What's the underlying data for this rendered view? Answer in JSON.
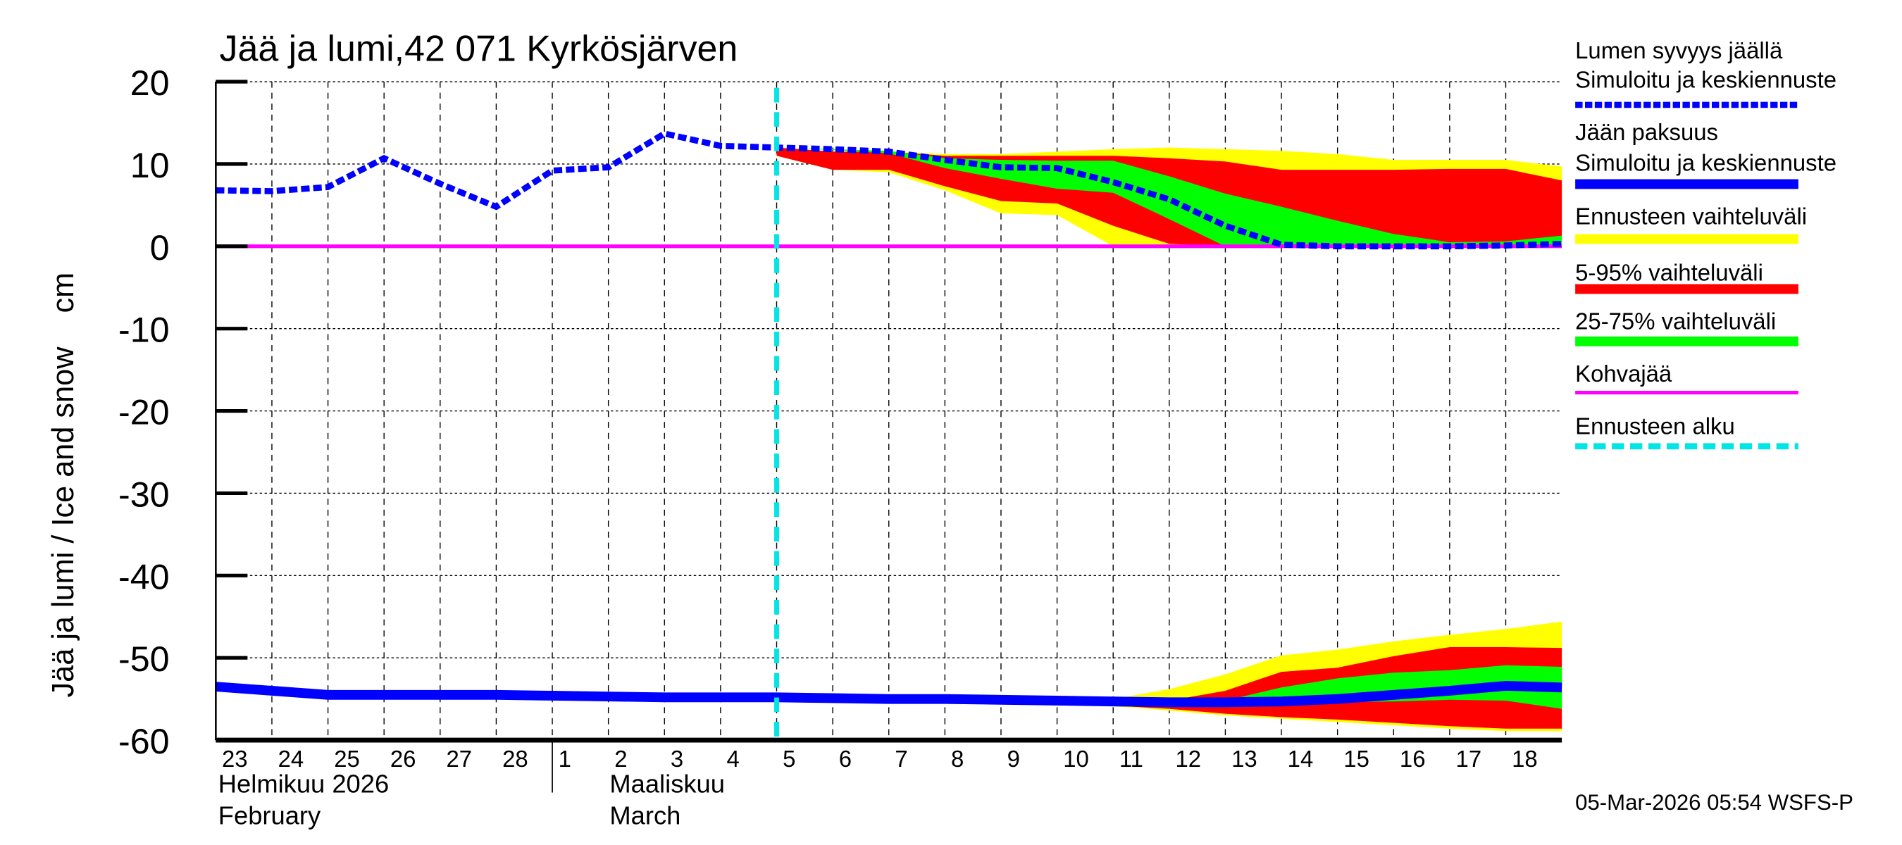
{
  "chart_data": {
    "type": "area",
    "title": "Jää ja lumi,42 071 Kyrkösjärven",
    "ylabel": "Jää ja lumi / Ice and snow    cm",
    "ylim": [
      -60,
      20
    ],
    "yticks": [
      20,
      10,
      0,
      -10,
      -20,
      -30,
      -40,
      -50,
      -60
    ],
    "xlim": [
      "2026-02-23",
      "2026-03-19"
    ],
    "xtick_labels": [
      "23",
      "24",
      "25",
      "26",
      "27",
      "28",
      "1",
      "2",
      "3",
      "4",
      "5",
      "6",
      "7",
      "8",
      "9",
      "10",
      "11",
      "12",
      "13",
      "14",
      "15",
      "16",
      "17",
      "18"
    ],
    "month_labels": [
      {
        "fi": "Helmikuu  2026",
        "en": "February"
      },
      {
        "fi": "Maaliskuu",
        "en": "March"
      }
    ],
    "grid": true,
    "legend_position": "right",
    "footer": "05-Mar-2026 05:54 WSFS-P",
    "forecast_start": "2026-03-05",
    "legend": [
      {
        "label": "Lumen syvyys jäällä",
        "label2": "Simuloitu ja keskiennuste",
        "color": "#0000ff",
        "style": "dashed"
      },
      {
        "label": "Jään paksuus",
        "label2": "Simuloitu ja keskiennuste",
        "color": "#0000ff",
        "style": "solid"
      },
      {
        "label": "Ennusteen vaihteluväli",
        "color": "#ffff00",
        "style": "band"
      },
      {
        "label": "5-95% vaihteluväli",
        "color": "#ff0000",
        "style": "band"
      },
      {
        "label": "25-75% vaihteluväli",
        "color": "#00ff00",
        "style": "band"
      },
      {
        "label": "Kohvajää",
        "color": "#ff00ff",
        "style": "solid-thin"
      },
      {
        "label": "Ennusteen alku",
        "color": "#00e5e5",
        "style": "dashed"
      }
    ],
    "snow_depth": {
      "x": [
        "2026-02-23",
        "2026-02-24",
        "2026-02-25",
        "2026-02-26",
        "2026-02-27",
        "2026-02-28",
        "2026-03-01",
        "2026-03-02",
        "2026-03-03",
        "2026-03-04",
        "2026-03-05",
        "2026-03-06",
        "2026-03-07",
        "2026-03-08",
        "2026-03-09",
        "2026-03-10",
        "2026-03-11",
        "2026-03-12",
        "2026-03-13",
        "2026-03-14",
        "2026-03-15",
        "2026-03-16",
        "2026-03-17",
        "2026-03-18",
        "2026-03-19"
      ],
      "values": [
        6.8,
        6.7,
        7.2,
        10.7,
        7.6,
        4.8,
        9.2,
        9.6,
        13.7,
        12.2,
        12.0,
        11.8,
        11.5,
        10.5,
        9.6,
        9.5,
        7.8,
        5.7,
        2.5,
        0.2,
        0,
        0,
        0,
        0.1,
        0.3
      ]
    },
    "snow_bands": {
      "x": [
        "2026-03-05",
        "2026-03-06",
        "2026-03-07",
        "2026-03-08",
        "2026-03-09",
        "2026-03-10",
        "2026-03-11",
        "2026-03-12",
        "2026-03-13",
        "2026-03-14",
        "2026-03-15",
        "2026-03-16",
        "2026-03-17",
        "2026-03-18",
        "2026-03-19"
      ],
      "range_upper": [
        12,
        11.5,
        11.5,
        11.2,
        11.2,
        11.5,
        11.8,
        12,
        11.8,
        11.6,
        11.2,
        10.5,
        10.5,
        10.5,
        9.7
      ],
      "range_lower": [
        11,
        9.3,
        9,
        6.8,
        4,
        3.8,
        0,
        0,
        0,
        0,
        0,
        0,
        0,
        0,
        0
      ],
      "p95": [
        12,
        11.5,
        11.5,
        11,
        11,
        11,
        11,
        10.7,
        10.3,
        9.3,
        9.3,
        9.3,
        9.4,
        9.4,
        8
      ],
      "p5": [
        11,
        9.3,
        9.3,
        7.3,
        5.5,
        5.2,
        2.5,
        0.3,
        0,
        0,
        0,
        0,
        0,
        0,
        0
      ],
      "p75": [
        12,
        11.8,
        11.6,
        10.7,
        10.5,
        10.4,
        10.4,
        8.5,
        6.4,
        4.8,
        3.1,
        1.5,
        0.5,
        0.6,
        1.3
      ],
      "p25": [
        12,
        11.7,
        11.3,
        9.5,
        8.2,
        7,
        6.5,
        3.3,
        0,
        0,
        0,
        0,
        0,
        0,
        0
      ]
    },
    "ice_thickness": {
      "x": [
        "2026-02-23",
        "2026-02-24",
        "2026-02-25",
        "2026-02-26",
        "2026-02-27",
        "2026-02-28",
        "2026-03-01",
        "2026-03-02",
        "2026-03-03",
        "2026-03-04",
        "2026-03-05",
        "2026-03-06",
        "2026-03-07",
        "2026-03-08",
        "2026-03-09",
        "2026-03-10",
        "2026-03-11",
        "2026-03-12",
        "2026-03-13",
        "2026-03-14",
        "2026-03-15",
        "2026-03-16",
        "2026-03-17",
        "2026-03-18",
        "2026-03-19"
      ],
      "values": [
        -53.5,
        -54,
        -54.5,
        -54.5,
        -54.5,
        -54.5,
        -54.6,
        -54.7,
        -54.8,
        -54.8,
        -54.8,
        -54.9,
        -55,
        -55,
        -55.1,
        -55.2,
        -55.3,
        -55.4,
        -55.4,
        -55.3,
        -55,
        -54.5,
        -54,
        -53.4,
        -53.6
      ]
    },
    "ice_bands": {
      "x": [
        "2026-03-10",
        "2026-03-11",
        "2026-03-12",
        "2026-03-13",
        "2026-03-14",
        "2026-03-15",
        "2026-03-16",
        "2026-03-17",
        "2026-03-18",
        "2026-03-19"
      ],
      "range_upper": [
        -55.2,
        -55,
        -53.8,
        -52,
        -49.7,
        -49,
        -48,
        -47.2,
        -46.5,
        -45.6
      ],
      "range_lower": [
        -55.3,
        -55.9,
        -56.4,
        -57,
        -57.4,
        -57.8,
        -58.2,
        -58.6,
        -58.9,
        -58.9
      ],
      "p95": [
        -55.2,
        -55.2,
        -55.2,
        -54,
        -51.7,
        -51.2,
        -49.8,
        -48.7,
        -48.7,
        -48.8
      ],
      "p5": [
        -55.3,
        -55.8,
        -56.2,
        -56.8,
        -57.2,
        -57.5,
        -57.9,
        -58.3,
        -58.6,
        -58.6
      ],
      "p75": [
        -55.2,
        -55.3,
        -55.4,
        -55.2,
        -53.6,
        -52.5,
        -51.8,
        -51.5,
        -50.9,
        -51.1
      ],
      "p25": [
        -55.2,
        -55.3,
        -55.4,
        -55.4,
        -55.4,
        -55.4,
        -55.3,
        -55.1,
        -55.2,
        -56.2
      ]
    },
    "slush_ice": {
      "value": 0,
      "color": "#ff00ff"
    }
  }
}
